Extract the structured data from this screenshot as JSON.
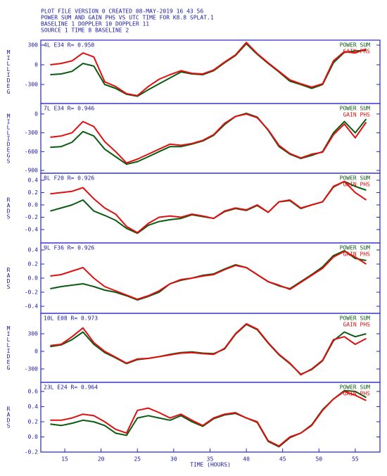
{
  "header": {
    "lines": [
      "PLOT FILE VERSION 0  CREATED 08-MAY-2019 16 43 56",
      "POWER SUM AND GAIN PHS VS UTC TIME FOR K8.8 SPLAT.1",
      "BASELINE 1  DOPPLER 10  DOPPLER 11",
      "SOURCE 1  TIME 8  BASELINE 2"
    ]
  },
  "chart_data": [
    {
      "type": "line",
      "title": "4L E34  R= 0.950",
      "ylabel": "MILLIDEG",
      "legend": "top-right",
      "x": [
        13,
        14.5,
        16,
        17.5,
        19,
        20.5,
        22,
        23.5,
        25,
        26.5,
        28,
        29.5,
        31,
        32.5,
        34,
        35.5,
        37,
        38.5,
        40,
        41.5,
        43,
        44.5,
        46,
        47.5,
        49,
        50.5,
        52,
        53.5,
        55,
        56.5
      ],
      "xlim": [
        11.7,
        58.4
      ],
      "ylim": [
        -590,
        375
      ],
      "yticks": [
        300,
        0,
        -300
      ],
      "series": [
        {
          "name": "POWER SUM",
          "color": "#0b5a12",
          "values": [
            -150,
            -140,
            -100,
            20,
            -20,
            -300,
            -360,
            -450,
            -480,
            -380,
            -290,
            -200,
            -110,
            -140,
            -150,
            -90,
            30,
            140,
            320,
            160,
            20,
            -110,
            -250,
            -300,
            -360,
            -300,
            30,
            190,
            210,
            220
          ]
        },
        {
          "name": "GAIN PHS",
          "color": "#e01010",
          "values": [
            0,
            20,
            60,
            180,
            120,
            -260,
            -330,
            -440,
            -470,
            -330,
            -220,
            -150,
            -90,
            -130,
            -140,
            -80,
            40,
            150,
            340,
            170,
            30,
            -100,
            -230,
            -290,
            -340,
            -290,
            60,
            200,
            180,
            240
          ]
        }
      ]
    },
    {
      "type": "line",
      "title": "7L E34  R= 0.946",
      "ylabel": "MILLIDEGS",
      "legend": "top-right",
      "x": [
        13,
        14.5,
        16,
        17.5,
        19,
        20.5,
        22,
        23.5,
        25,
        26.5,
        28,
        29.5,
        31,
        32.5,
        34,
        35.5,
        37,
        38.5,
        40,
        41.5,
        43,
        44.5,
        46,
        47.5,
        49,
        50.5,
        52,
        53.5,
        55,
        56.5
      ],
      "xlim": [
        11.7,
        58.4
      ],
      "ylim": [
        -944,
        167
      ],
      "yticks": [
        0,
        -300,
        -600,
        -900
      ],
      "series": [
        {
          "name": "POWER SUM",
          "color": "#0b5a12",
          "values": [
            -530,
            -520,
            -450,
            -280,
            -350,
            -560,
            -680,
            -800,
            -760,
            -680,
            -600,
            -520,
            -520,
            -480,
            -430,
            -340,
            -170,
            -40,
            10,
            -50,
            -260,
            -520,
            -640,
            -710,
            -660,
            -600,
            -300,
            -120,
            -300,
            -80
          ]
        },
        {
          "name": "GAIN PHS",
          "color": "#e01010",
          "values": [
            -370,
            -350,
            -300,
            -120,
            -200,
            -440,
            -600,
            -780,
            -720,
            -640,
            -560,
            -480,
            -500,
            -470,
            -420,
            -330,
            -150,
            -40,
            0,
            -60,
            -250,
            -500,
            -630,
            -700,
            -640,
            -610,
            -330,
            -160,
            -380,
            -130
          ]
        }
      ]
    },
    {
      "type": "line",
      "title": "8L F20  R= 0.926",
      "ylabel": "RADS",
      "legend": "top-right",
      "x": [
        13,
        14.5,
        16,
        17.5,
        19,
        20.5,
        22,
        23.5,
        25,
        26.5,
        28,
        29.5,
        31,
        32.5,
        34,
        35.5,
        37,
        38.5,
        40,
        41.5,
        43,
        44.5,
        46,
        47.5,
        49,
        50.5,
        52,
        53.5,
        55,
        56.5
      ],
      "xlim": [
        11.7,
        58.4
      ],
      "ylim": [
        -0.617,
        0.514
      ],
      "yticks": [
        0.4,
        0.2,
        {
          "value": 0,
          "label": "0.0"
        },
        -0.2,
        -0.4
      ],
      "series": [
        {
          "name": "POWER SUM",
          "color": "#0b5a12",
          "values": [
            -0.1,
            -0.05,
            0.0,
            0.08,
            -0.1,
            -0.17,
            -0.25,
            -0.38,
            -0.46,
            -0.33,
            -0.27,
            -0.24,
            -0.22,
            -0.16,
            -0.19,
            -0.22,
            -0.11,
            -0.06,
            -0.09,
            -0.01,
            -0.12,
            0.05,
            0.07,
            -0.06,
            0.0,
            0.05,
            0.29,
            0.38,
            0.3,
            0.24
          ]
        },
        {
          "name": "GAIN PHS",
          "color": "#e01010",
          "values": [
            0.18,
            0.2,
            0.22,
            0.28,
            0.1,
            -0.05,
            -0.15,
            -0.35,
            -0.45,
            -0.3,
            -0.2,
            -0.18,
            -0.2,
            -0.15,
            -0.18,
            -0.22,
            -0.1,
            -0.05,
            -0.08,
            0.0,
            -0.12,
            0.05,
            0.08,
            -0.05,
            0.0,
            0.05,
            0.3,
            0.38,
            0.2,
            0.08
          ]
        }
      ]
    },
    {
      "type": "line",
      "title": "9L F36  R= 0.926",
      "ylabel": "RADS",
      "legend": "top-right",
      "x": [
        13,
        14.5,
        16,
        17.5,
        19,
        20.5,
        22,
        23.5,
        25,
        26.5,
        28,
        29.5,
        31,
        32.5,
        34,
        35.5,
        37,
        38.5,
        40,
        41.5,
        43,
        44.5,
        46,
        47.5,
        49,
        50.5,
        52,
        53.5,
        55,
        56.5
      ],
      "xlim": [
        11.7,
        58.4
      ],
      "ylim": [
        -0.5,
        0.5
      ],
      "yticks": [
        0.4,
        0.2,
        {
          "value": 0,
          "label": "0.0"
        },
        -0.2,
        -0.4
      ],
      "series": [
        {
          "name": "POWER SUM",
          "color": "#0b5a12",
          "values": [
            -0.15,
            -0.12,
            -0.1,
            -0.08,
            -0.12,
            -0.17,
            -0.2,
            -0.25,
            -0.31,
            -0.26,
            -0.2,
            -0.08,
            -0.03,
            0.0,
            0.04,
            0.06,
            0.13,
            0.19,
            0.15,
            0.05,
            -0.05,
            -0.11,
            -0.15,
            -0.05,
            0.05,
            0.16,
            0.32,
            0.39,
            0.28,
            0.25
          ]
        },
        {
          "name": "GAIN PHS",
          "color": "#e01010",
          "values": [
            0.03,
            0.05,
            0.1,
            0.15,
            0.0,
            -0.12,
            -0.18,
            -0.24,
            -0.3,
            -0.25,
            -0.18,
            -0.08,
            -0.02,
            0.0,
            0.03,
            0.05,
            0.12,
            0.18,
            0.15,
            0.05,
            -0.05,
            -0.1,
            -0.16,
            -0.06,
            0.04,
            0.14,
            0.3,
            0.38,
            0.3,
            0.2
          ]
        }
      ]
    },
    {
      "type": "line",
      "title": "10L E08  R= 0.973",
      "ylabel": "MILLIDEG",
      "legend": "top-right",
      "x": [
        13,
        14.5,
        16,
        17.5,
        19,
        20.5,
        22,
        23.5,
        25,
        26.5,
        28,
        29.5,
        31,
        32.5,
        34,
        35.5,
        37,
        38.5,
        40,
        41.5,
        43,
        44.5,
        46,
        47.5,
        49,
        50.5,
        52,
        53.5,
        55,
        56.5
      ],
      "xlim": [
        11.7,
        58.4
      ],
      "ylim": [
        -528,
        648
      ],
      "yticks": [
        300,
        0,
        -300
      ],
      "series": [
        {
          "name": "POWER SUM",
          "color": "#0b5a12",
          "values": [
            80,
            110,
            200,
            330,
            120,
            -20,
            -110,
            -210,
            -140,
            -120,
            -90,
            -50,
            -20,
            -10,
            -30,
            -40,
            40,
            290,
            460,
            370,
            140,
            -60,
            -210,
            -390,
            -310,
            -160,
            180,
            330,
            250,
            300
          ]
        },
        {
          "name": "GAIN PHS",
          "color": "#e01010",
          "values": [
            100,
            120,
            250,
            400,
            150,
            0,
            -100,
            -200,
            -130,
            -120,
            -90,
            -60,
            -30,
            -20,
            -40,
            -50,
            50,
            300,
            470,
            380,
            150,
            -50,
            -200,
            -400,
            -300,
            -150,
            200,
            250,
            120,
            220
          ]
        }
      ]
    },
    {
      "type": "line",
      "title": "23L E24  R= 0.964",
      "ylabel": "RADS",
      "legend": "top-right",
      "x": [
        13,
        14.5,
        16,
        17.5,
        19,
        20.5,
        22,
        23.5,
        25,
        26.5,
        28,
        29.5,
        31,
        32.5,
        34,
        35.5,
        37,
        38.5,
        40,
        41.5,
        43,
        44.5,
        46,
        47.5,
        49,
        50.5,
        52,
        53.5,
        55,
        56.5
      ],
      "xlim": [
        11.7,
        58.4
      ],
      "ylim": [
        -0.2,
        0.72
      ],
      "yticks": [
        0.6,
        0.4,
        0.2,
        {
          "value": 0,
          "label": "0.0"
        },
        -0.2
      ],
      "xticks": [
        15,
        20,
        25,
        30,
        35,
        40,
        45,
        50,
        55
      ],
      "xlabel": "TIME (HOURS)",
      "series": [
        {
          "name": "POWER SUM",
          "color": "#0b5a12",
          "values": [
            0.17,
            0.15,
            0.18,
            0.22,
            0.2,
            0.15,
            0.05,
            0.02,
            0.25,
            0.28,
            0.25,
            0.22,
            0.28,
            0.2,
            0.14,
            0.24,
            0.29,
            0.31,
            0.25,
            0.19,
            -0.06,
            -0.13,
            -0.01,
            0.05,
            0.16,
            0.36,
            0.5,
            0.61,
            0.6,
            0.52
          ]
        },
        {
          "name": "GAIN PHS",
          "color": "#e01010",
          "values": [
            0.22,
            0.22,
            0.25,
            0.3,
            0.28,
            0.2,
            0.1,
            0.05,
            0.35,
            0.38,
            0.32,
            0.25,
            0.3,
            0.22,
            0.15,
            0.25,
            0.3,
            0.32,
            0.25,
            0.2,
            -0.05,
            -0.12,
            0.0,
            0.05,
            0.15,
            0.35,
            0.5,
            0.6,
            0.55,
            0.48
          ]
        }
      ]
    }
  ]
}
